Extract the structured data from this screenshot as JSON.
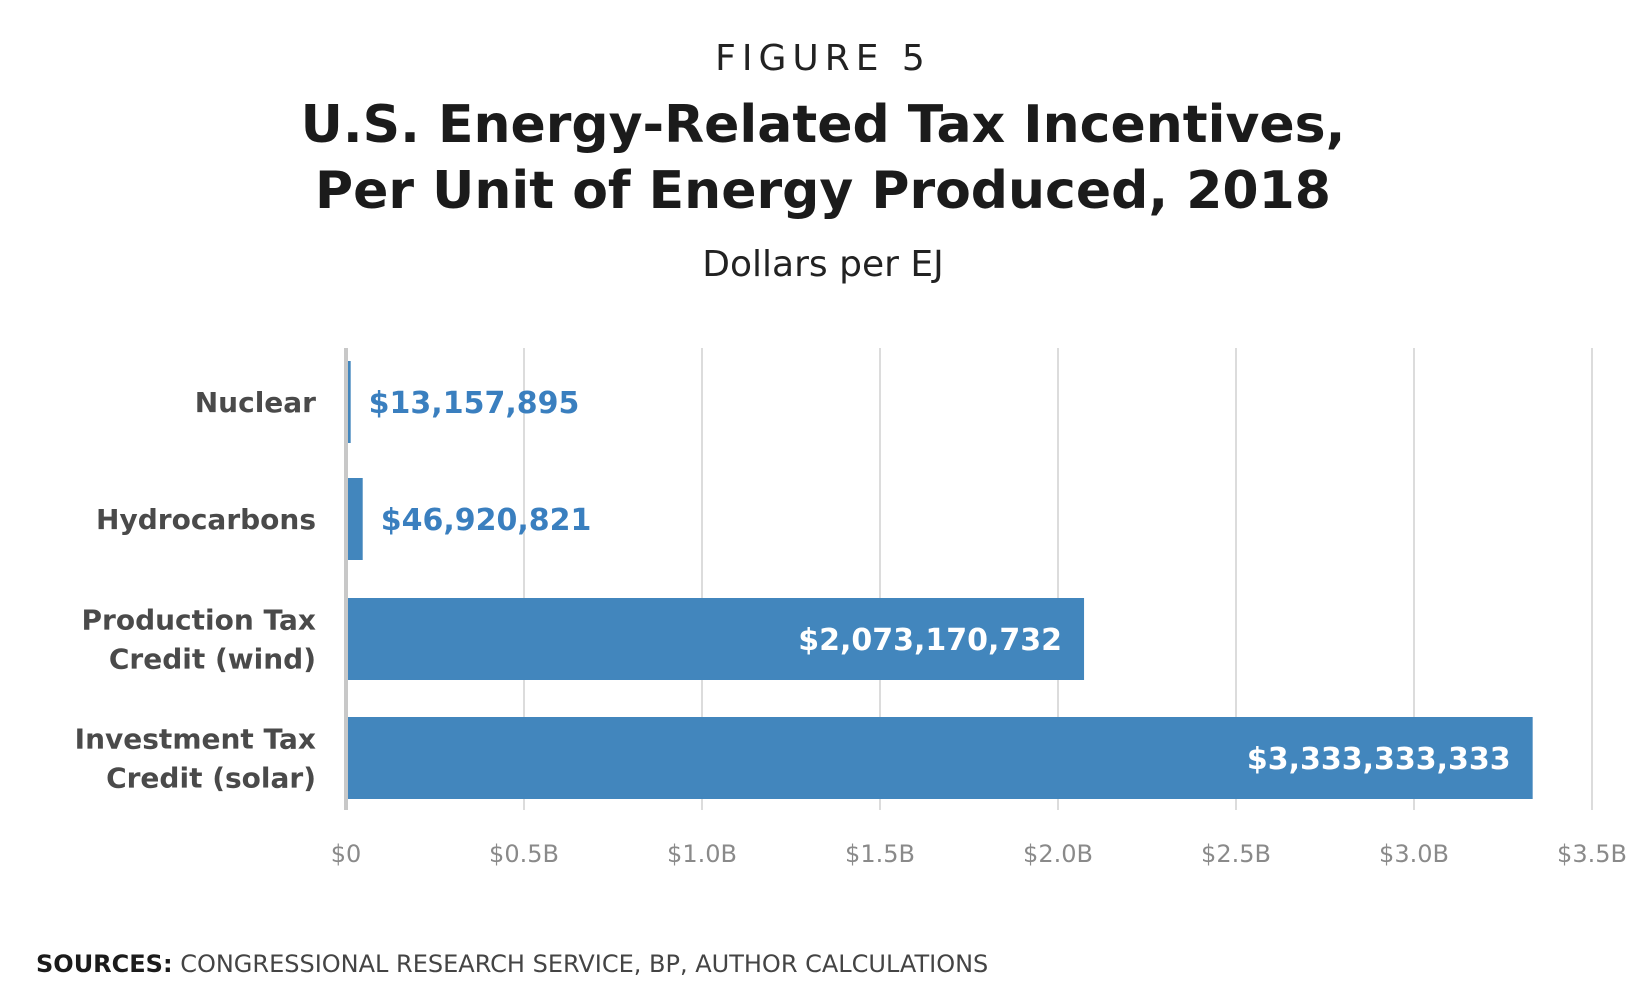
{
  "figure_label": "FIGURE 5",
  "title_lines": [
    "U.S. Energy-Related Tax Incentives,",
    "Per Unit of Energy Produced, 2018"
  ],
  "subtitle": "Dollars per EJ",
  "sources": {
    "label": "SOURCES:",
    "text": "CONGRESSIONAL RESEARCH SERVICE, BP, AUTHOR CALCULATIONS"
  },
  "colors": {
    "bar": "#4286bd",
    "outside_label": "#3a7fbf",
    "inside_label": "#ffffff",
    "grid": "#dcdcdc",
    "axis": "#c8c8c8"
  },
  "chart_data": {
    "type": "bar",
    "orientation": "horizontal",
    "title": "U.S. Energy-Related Tax Incentives, Per Unit of Energy Produced, 2018",
    "subtitle": "Dollars per EJ",
    "categories": [
      [
        "Nuclear"
      ],
      [
        "Hydrocarbons"
      ],
      [
        "Production Tax",
        "Credit (wind)"
      ],
      [
        "Investment Tax",
        "Credit (solar)"
      ]
    ],
    "values": [
      13157895,
      46920821,
      2073170732,
      3333333333
    ],
    "value_labels": [
      "$13,157,895",
      "$46,920,821",
      "$2,073,170,732",
      "$3,333,333,333"
    ],
    "xlim": [
      0,
      3500000000
    ],
    "x_ticks": [
      0,
      500000000,
      1000000000,
      1500000000,
      2000000000,
      2500000000,
      3000000000,
      3500000000
    ],
    "x_tick_labels": [
      "$0",
      "$0.5B",
      "$1.0B",
      "$1.5B",
      "$2.0B",
      "$2.5B",
      "$3.0B",
      "$3.5B"
    ],
    "grid": true,
    "legend": "none"
  }
}
